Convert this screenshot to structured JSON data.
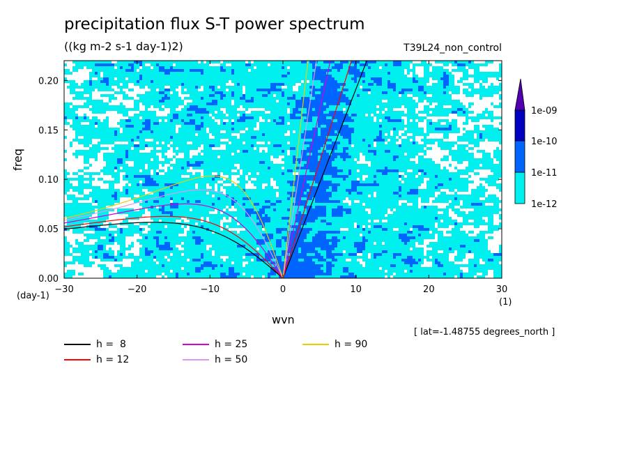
{
  "chart_data": {
    "type": "heatmap",
    "title": "precipitation flux S-T power spectrum",
    "units": "((kg m-2 s-1 day-1)2)",
    "dataset": "T39L24_non_control",
    "xlabel": "wvn",
    "ylabel": "freq",
    "x_unit": "(1)",
    "y_unit": "(day-1)",
    "xlim": [
      -30,
      30
    ],
    "ylim": [
      0,
      0.22
    ],
    "x_ticks": [
      -30,
      -20,
      -10,
      0,
      10,
      20,
      30
    ],
    "y_ticks": [
      "0.00",
      "0.05",
      "0.10",
      "0.15",
      "0.20"
    ],
    "colorbar": {
      "levels": [
        "1e-12",
        "1e-11",
        "1e-10",
        "1e-09"
      ],
      "colors": [
        "#ffffff",
        "#00f0f0",
        "#0064ff",
        "#0000c0",
        "#5000b0"
      ]
    },
    "dispersion_curves": [
      {
        "label": "h =  8",
        "h": 8,
        "color": "#000000"
      },
      {
        "label": "h = 12",
        "h": 12,
        "color": "#ff0000"
      },
      {
        "label": "h = 25",
        "h": 25,
        "color": "#d400d4"
      },
      {
        "label": "h = 50",
        "h": 50,
        "color": "#dc98f0"
      },
      {
        "label": "h = 90",
        "h": 90,
        "color": "#e8d000"
      }
    ],
    "annotation": "[ lat=-1.48755 degrees_north ]"
  }
}
